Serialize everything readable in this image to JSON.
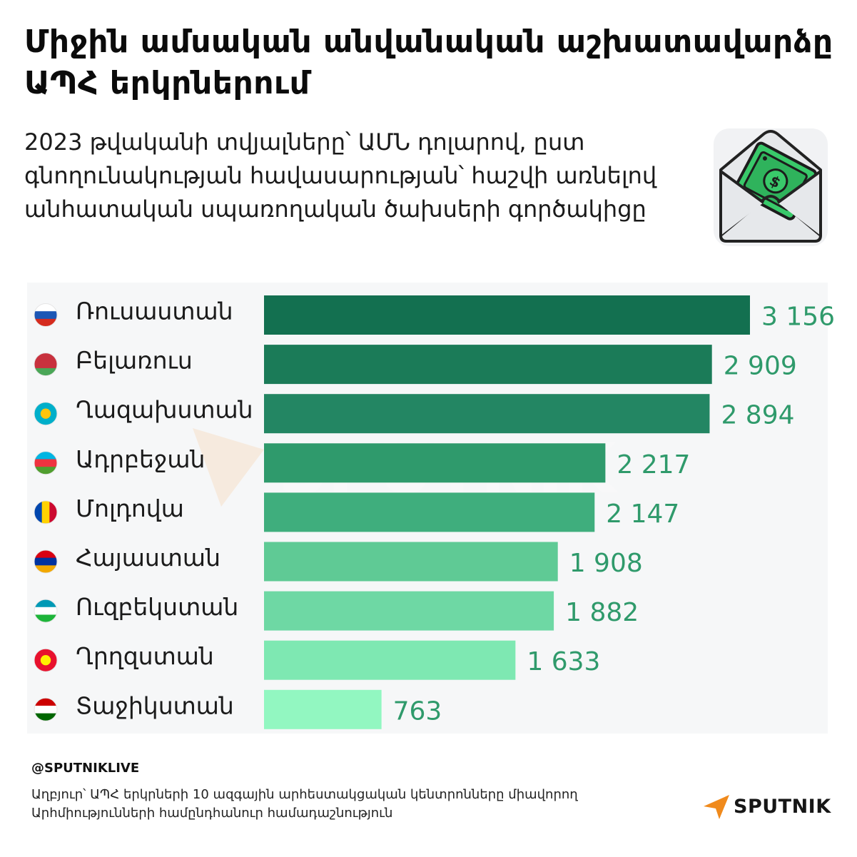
{
  "header": {
    "title": "Միջին ամսական անվանական աշխատավարձը ԱՊՀ երկրներում",
    "subtitle": "2023 թվականի տվյալները՝ ԱՄՆ դոլարով, ըստ գնողունակության հավասարության՝ հաշվի առնելով անհատական սպառողական ծախսերի գործակիցը"
  },
  "icons": {
    "header_illustration": "envelope-money-icon",
    "flags": [
      "flag-russia-icon",
      "flag-belarus-icon",
      "flag-kazakhstan-icon",
      "flag-azerbaijan-icon",
      "flag-moldova-icon",
      "flag-armenia-icon",
      "flag-uzbekistan-icon",
      "flag-kyrgyzstan-icon",
      "flag-tajikistan-icon"
    ]
  },
  "colors": {
    "bars": [
      "#137050",
      "#1b7b58",
      "#238663",
      "#2f9a6c",
      "#3fae7d",
      "#5fca95",
      "#6ed8a4",
      "#7ee8b2",
      "#92f7c1"
    ],
    "value_text": "#2f9a6b",
    "brand_accent": "#f08a1c"
  },
  "chart_data": {
    "type": "bar",
    "orientation": "horizontal",
    "categories": [
      "Ռուսաստան",
      "Բելառուս",
      "Ղազախստան",
      "Ադրբեջան",
      "Մոլդովա",
      "Հայաստան",
      "Ուզբեկստան",
      "Ղրղզստան",
      "Տաջիկստան"
    ],
    "values": [
      3156,
      2909,
      2894,
      2217,
      2147,
      1908,
      1882,
      1633,
      763
    ],
    "value_labels": [
      "3 156",
      "2 909",
      "2 894",
      "2 217",
      "2 147",
      "1 908",
      "1 882",
      "1 633",
      "763"
    ],
    "title": "Միջին ամսական անվանական աշխատավարձը ԱՊՀ երկրներում",
    "xlabel": "",
    "ylabel": "",
    "xlim": [
      0,
      3156
    ],
    "grid": false,
    "legend": "none"
  },
  "footer": {
    "handle": "@SPUTNIKLIVE",
    "source": "Աղբյուր՝ ԱՊՀ երկրների 10 ազգային արհեստակցական կենտրոնները միավորող Արհմիությունների համընդհանուր համադաշնություն",
    "brand": "SPUTNIK",
    "watermark": "SPUTNIK"
  }
}
